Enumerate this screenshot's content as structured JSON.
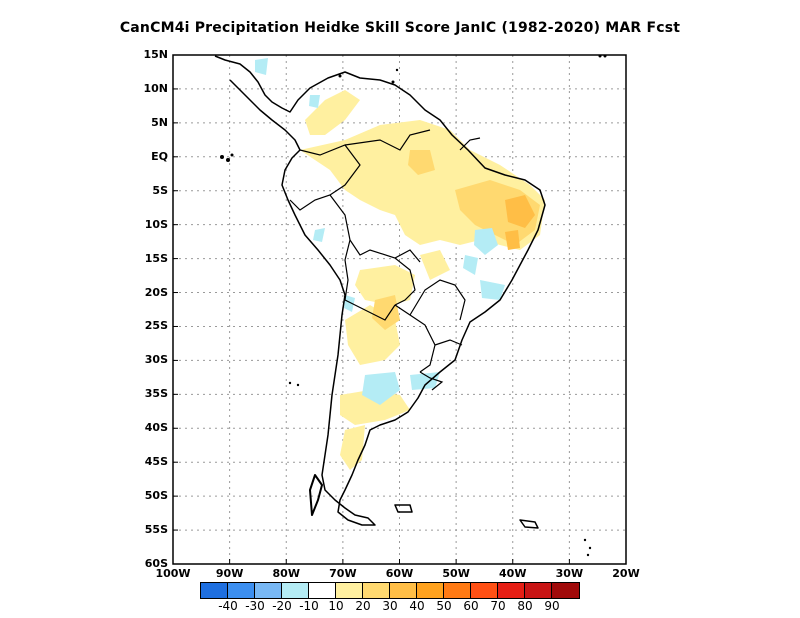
{
  "title": "CanCM4i  Precipitation Heidke Skill Score JanIC (1982-2020) MAR Fcst",
  "lat_ticks": [
    "15N",
    "10N",
    "5N",
    "EQ",
    "5S",
    "10S",
    "15S",
    "20S",
    "25S",
    "30S",
    "35S",
    "40S",
    "45S",
    "50S",
    "55S",
    "60S"
  ],
  "lon_ticks": [
    "100W",
    "90W",
    "80W",
    "70W",
    "60W",
    "50W",
    "40W",
    "30W",
    "20W"
  ],
  "colorbar": {
    "colors": [
      "#1e6fe0",
      "#3c8ff0",
      "#78b8f5",
      "#b4ecf5",
      "#ffffff",
      "#fff0a0",
      "#ffd970",
      "#ffbe46",
      "#ffa21e",
      "#ff7a14",
      "#ff5014",
      "#e61e14",
      "#c81414",
      "#a00a0a"
    ],
    "labels": [
      "-40",
      "-30",
      "-20",
      "-10",
      "10",
      "20",
      "30",
      "40",
      "50",
      "60",
      "70",
      "80",
      "90"
    ]
  }
}
